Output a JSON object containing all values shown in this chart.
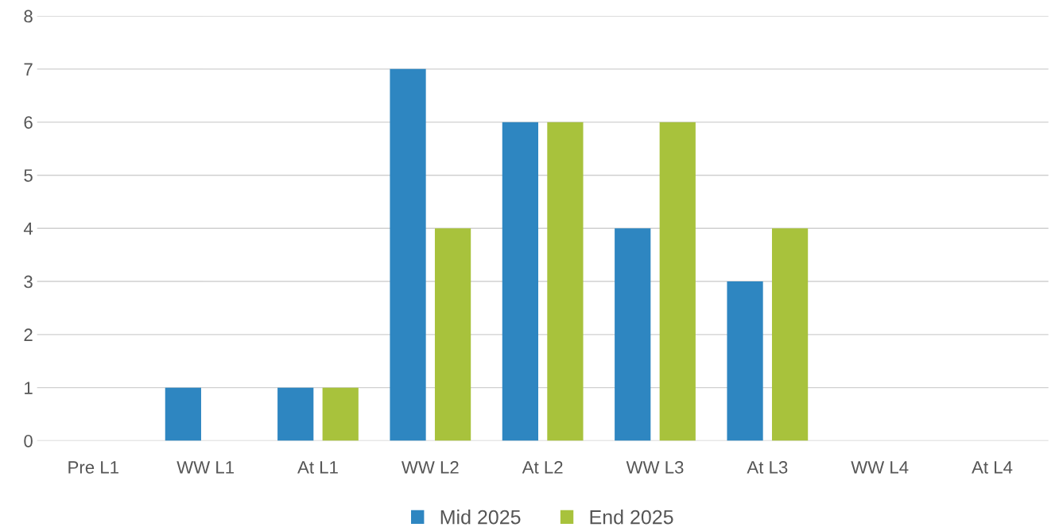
{
  "chart_data": {
    "type": "bar",
    "categories": [
      "Pre L1",
      "WW L1",
      "At L1",
      "WW L2",
      "At L2",
      "WW L3",
      "At L3",
      "WW L4",
      "At L4"
    ],
    "series": [
      {
        "name": "Mid 2025",
        "color": "#2e86c1",
        "values": [
          0,
          1,
          1,
          7,
          6,
          4,
          3,
          0,
          0
        ]
      },
      {
        "name": "End 2025",
        "color": "#a8c23c",
        "values": [
          0,
          0,
          1,
          4,
          6,
          6,
          4,
          0,
          0
        ]
      }
    ],
    "ylim": [
      0,
      8
    ],
    "yticks": [
      0,
      1,
      2,
      3,
      4,
      5,
      6,
      7,
      8
    ],
    "grid": "y",
    "legend": "bottom"
  }
}
